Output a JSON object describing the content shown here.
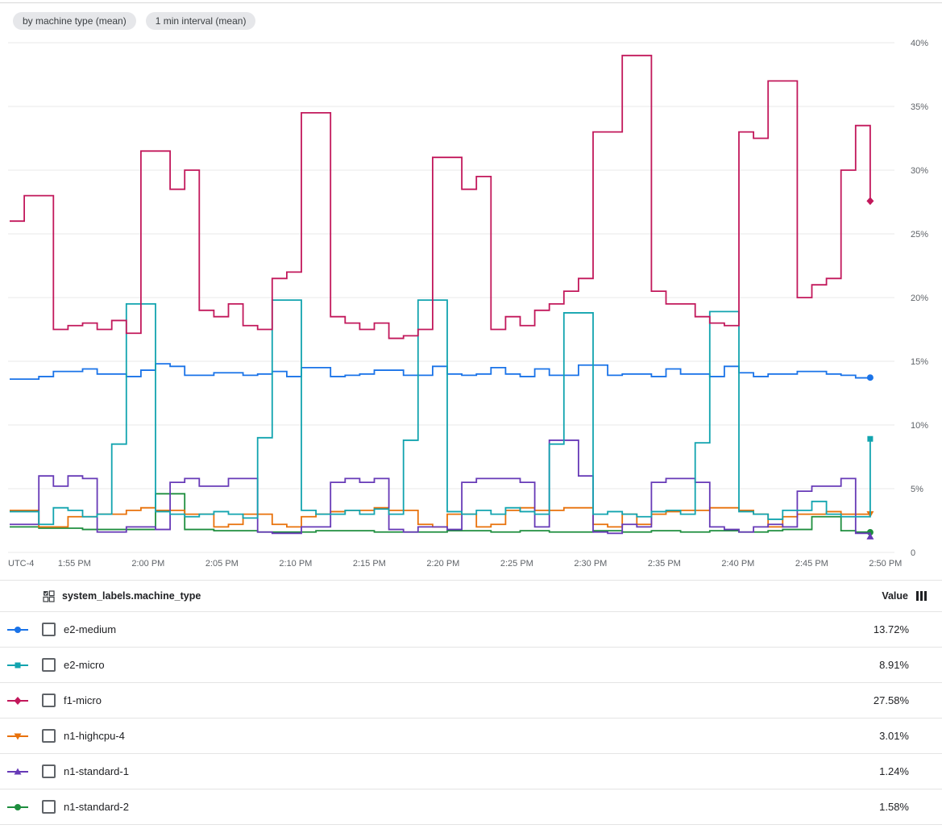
{
  "chips": [
    "by machine type (mean)",
    "1 min interval (mean)"
  ],
  "chart_data": {
    "type": "line",
    "style": "step-after",
    "grid": true,
    "legend_position": "bottom-table",
    "ylim": [
      0,
      40
    ],
    "y_ticks": [
      {
        "v": 0,
        "label": "0"
      },
      {
        "v": 5,
        "label": "5%"
      },
      {
        "v": 10,
        "label": "10%"
      },
      {
        "v": 15,
        "label": "15%"
      },
      {
        "v": 20,
        "label": "20%"
      },
      {
        "v": 25,
        "label": "25%"
      },
      {
        "v": 30,
        "label": "30%"
      },
      {
        "v": 35,
        "label": "35%"
      },
      {
        "v": 40,
        "label": "40%"
      }
    ],
    "x_axis_prefix_label": "UTC-4",
    "x_ticks": [
      {
        "m": 4,
        "label": "1:55 PM"
      },
      {
        "m": 9,
        "label": "2:00 PM"
      },
      {
        "m": 14,
        "label": "2:05 PM"
      },
      {
        "m": 19,
        "label": "2:10 PM"
      },
      {
        "m": 24,
        "label": "2:15 PM"
      },
      {
        "m": 29,
        "label": "2:20 PM"
      },
      {
        "m": 34,
        "label": "2:25 PM"
      },
      {
        "m": 39,
        "label": "2:30 PM"
      },
      {
        "m": 44,
        "label": "2:35 PM"
      },
      {
        "m": 49,
        "label": "2:40 PM"
      },
      {
        "m": 54,
        "label": "2:45 PM"
      },
      {
        "m": 59,
        "label": "2:50 PM"
      }
    ],
    "draw_order": [
      5,
      3,
      4,
      0,
      1,
      2
    ],
    "series": [
      {
        "name": "e2-medium",
        "color": "#1A73E8",
        "marker": "circle",
        "values": [
          13.6,
          13.6,
          13.8,
          14.2,
          14.2,
          14.4,
          14.0,
          14.0,
          13.8,
          14.3,
          14.8,
          14.6,
          13.9,
          13.9,
          14.1,
          14.1,
          13.9,
          14.0,
          14.2,
          13.8,
          14.5,
          14.5,
          13.8,
          13.9,
          14.0,
          14.3,
          14.3,
          13.9,
          13.9,
          14.6,
          14.0,
          13.9,
          14.0,
          14.5,
          14.0,
          13.8,
          14.4,
          13.9,
          13.9,
          14.7,
          14.7,
          13.9,
          14.0,
          14.0,
          13.8,
          14.4,
          14.0,
          14.0,
          13.8,
          14.6,
          14.1,
          13.8,
          14.0,
          14.0,
          14.2,
          14.2,
          14.0,
          13.9,
          13.7,
          13.72
        ]
      },
      {
        "name": "e2-micro",
        "color": "#12A4AF",
        "marker": "square",
        "values": [
          3.2,
          3.2,
          2.2,
          3.5,
          3.3,
          2.8,
          3.0,
          8.5,
          19.5,
          19.5,
          3.2,
          3.0,
          2.8,
          3.0,
          3.2,
          3.0,
          2.7,
          9.0,
          19.8,
          19.8,
          3.3,
          3.0,
          3.0,
          3.3,
          3.0,
          3.4,
          3.0,
          8.8,
          19.8,
          19.8,
          3.2,
          3.0,
          3.3,
          3.0,
          3.5,
          3.2,
          3.0,
          8.5,
          18.8,
          18.8,
          3.0,
          3.2,
          3.0,
          2.8,
          3.2,
          3.3,
          3.0,
          8.6,
          18.9,
          18.9,
          3.2,
          3.0,
          2.6,
          3.3,
          3.3,
          4.0,
          3.0,
          2.8,
          2.8,
          8.91
        ]
      },
      {
        "name": "f1-micro",
        "color": "#C2185B",
        "marker": "diamond",
        "values": [
          26,
          28,
          28,
          17.5,
          17.8,
          18,
          17.5,
          18.2,
          17.2,
          31.5,
          31.5,
          28.5,
          30,
          19,
          18.5,
          19.5,
          17.8,
          17.5,
          21.5,
          22,
          34.5,
          34.5,
          18.5,
          18,
          17.5,
          18,
          16.8,
          17,
          17.5,
          31,
          31,
          28.5,
          29.5,
          17.5,
          18.5,
          17.8,
          19,
          19.5,
          20.5,
          21.5,
          33,
          33,
          39,
          39,
          20.5,
          19.5,
          19.5,
          18.5,
          18,
          17.8,
          33,
          32.5,
          37,
          37,
          20,
          21,
          21.5,
          30,
          33.5,
          27.58
        ]
      },
      {
        "name": "n1-highcpu-4",
        "color": "#E8710A",
        "marker": "triangle-down",
        "values": [
          3.3,
          3.3,
          2.0,
          2.0,
          2.8,
          2.8,
          3.0,
          3.0,
          3.3,
          3.5,
          3.3,
          3.3,
          3.0,
          3.0,
          2.0,
          2.2,
          3.0,
          3.0,
          2.2,
          2.0,
          2.8,
          3.0,
          3.2,
          3.3,
          3.3,
          3.5,
          3.3,
          3.3,
          2.2,
          2.0,
          3.0,
          3.0,
          2.0,
          2.2,
          3.3,
          3.5,
          3.3,
          3.3,
          3.5,
          3.5,
          2.2,
          2.0,
          3.0,
          2.2,
          3.0,
          3.2,
          3.3,
          3.3,
          3.5,
          3.5,
          3.3,
          3.0,
          2.0,
          2.8,
          3.0,
          3.0,
          3.2,
          3.0,
          3.0,
          3.01
        ]
      },
      {
        "name": "n1-standard-1",
        "color": "#673AB7",
        "marker": "triangle-up",
        "values": [
          2.2,
          2.2,
          6.0,
          5.2,
          6.0,
          5.8,
          1.6,
          1.6,
          2.0,
          2.0,
          1.8,
          5.5,
          5.8,
          5.2,
          5.2,
          5.8,
          5.8,
          1.6,
          1.5,
          1.5,
          2.0,
          2.0,
          5.5,
          5.8,
          5.5,
          5.8,
          1.8,
          1.6,
          2.0,
          2.0,
          1.8,
          5.5,
          5.8,
          5.8,
          5.8,
          5.5,
          2.0,
          8.8,
          8.8,
          6.0,
          1.6,
          1.5,
          2.2,
          2.0,
          5.5,
          5.8,
          5.8,
          5.5,
          2.0,
          1.8,
          1.6,
          2.0,
          2.2,
          2.0,
          4.8,
          5.2,
          5.2,
          5.8,
          1.5,
          1.24
        ]
      },
      {
        "name": "n1-standard-2",
        "color": "#1E8E3E",
        "marker": "circle",
        "values": [
          2.0,
          2.0,
          1.9,
          1.9,
          1.9,
          1.8,
          1.8,
          1.8,
          1.8,
          1.8,
          4.6,
          4.6,
          1.8,
          1.8,
          1.7,
          1.7,
          1.7,
          1.6,
          1.6,
          1.6,
          1.6,
          1.7,
          1.7,
          1.7,
          1.7,
          1.6,
          1.6,
          1.6,
          1.6,
          1.6,
          1.7,
          1.7,
          1.7,
          1.6,
          1.6,
          1.7,
          1.7,
          1.6,
          1.6,
          1.6,
          1.7,
          1.7,
          1.6,
          1.6,
          1.7,
          1.7,
          1.6,
          1.6,
          1.7,
          1.7,
          1.6,
          1.6,
          1.7,
          1.8,
          1.8,
          2.8,
          2.8,
          1.7,
          1.6,
          1.58
        ]
      }
    ]
  },
  "table": {
    "header": {
      "label": "system_labels.machine_type",
      "value_label": "Value"
    },
    "rows": [
      {
        "label": "e2-medium",
        "value": "13.72%",
        "series_index": 0
      },
      {
        "label": "e2-micro",
        "value": "8.91%",
        "series_index": 1
      },
      {
        "label": "f1-micro",
        "value": "27.58%",
        "series_index": 2
      },
      {
        "label": "n1-highcpu-4",
        "value": "3.01%",
        "series_index": 3
      },
      {
        "label": "n1-standard-1",
        "value": "1.24%",
        "series_index": 4
      },
      {
        "label": "n1-standard-2",
        "value": "1.58%",
        "series_index": 5
      }
    ]
  }
}
